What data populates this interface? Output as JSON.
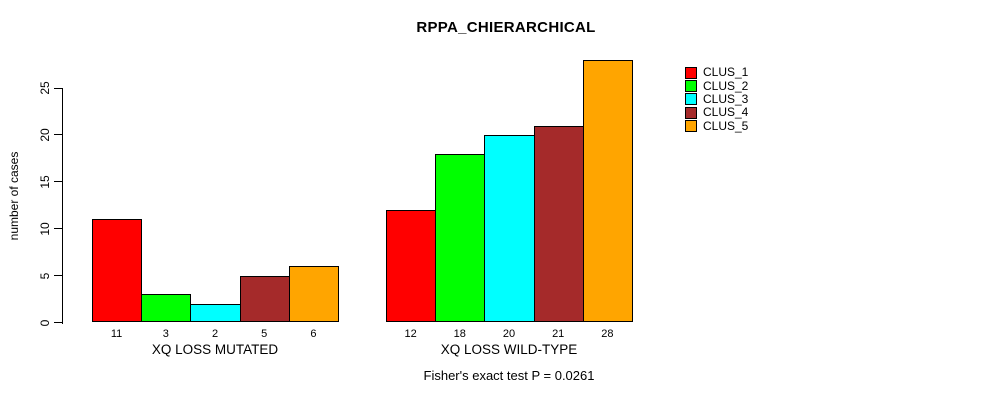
{
  "chart_data": {
    "type": "bar",
    "title": "RPPA_CHIERARCHICAL",
    "ylabel": "number of cases",
    "ylim": [
      0,
      25
    ],
    "yticks": [
      0,
      5,
      10,
      15,
      20,
      25
    ],
    "grid": false,
    "legend_position": "right",
    "categories": [
      "XQ LOSS MUTATED",
      "XQ LOSS WILD-TYPE"
    ],
    "series": [
      {
        "name": "CLUS_1",
        "color": "#ff0000",
        "values": [
          11,
          12
        ]
      },
      {
        "name": "CLUS_2",
        "color": "#00ff00",
        "values": [
          3,
          18
        ]
      },
      {
        "name": "CLUS_3",
        "color": "#00ffff",
        "values": [
          2,
          20
        ]
      },
      {
        "name": "CLUS_4",
        "color": "#a52a2a",
        "values": [
          5,
          21
        ]
      },
      {
        "name": "CLUS_5",
        "color": "#ffa500",
        "values": [
          6,
          28
        ]
      }
    ],
    "footnote": "Fisher's exact test P = 0.0261"
  }
}
